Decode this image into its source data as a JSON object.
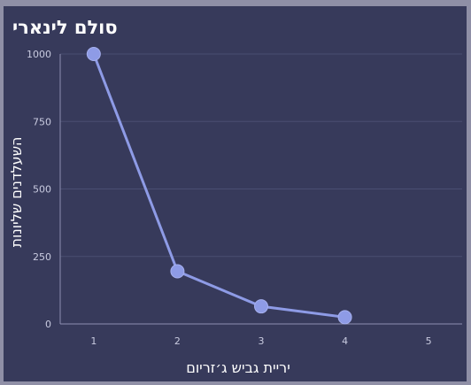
{
  "chart_data": {
    "type": "line",
    "title": "סולם לינארי",
    "xlabel": "יריית גביש ג׳זריום",
    "ylabel": "השעלדנים שליונות",
    "x": [
      1,
      2,
      3,
      4
    ],
    "series": [
      {
        "values": [
          1000,
          195,
          65,
          25
        ]
      }
    ],
    "xlim": [
      0.6,
      5.4
    ],
    "ylim": [
      0,
      1000
    ],
    "xticks": [
      1,
      2,
      3,
      4,
      5
    ],
    "yticks": [
      0,
      250,
      500,
      750,
      1000
    ],
    "grid": true,
    "legend": "none",
    "colors": {
      "line": "#8e9be6",
      "background": "#373a5b",
      "grid": "#4a4e72",
      "text": "#c9cbe0"
    }
  }
}
